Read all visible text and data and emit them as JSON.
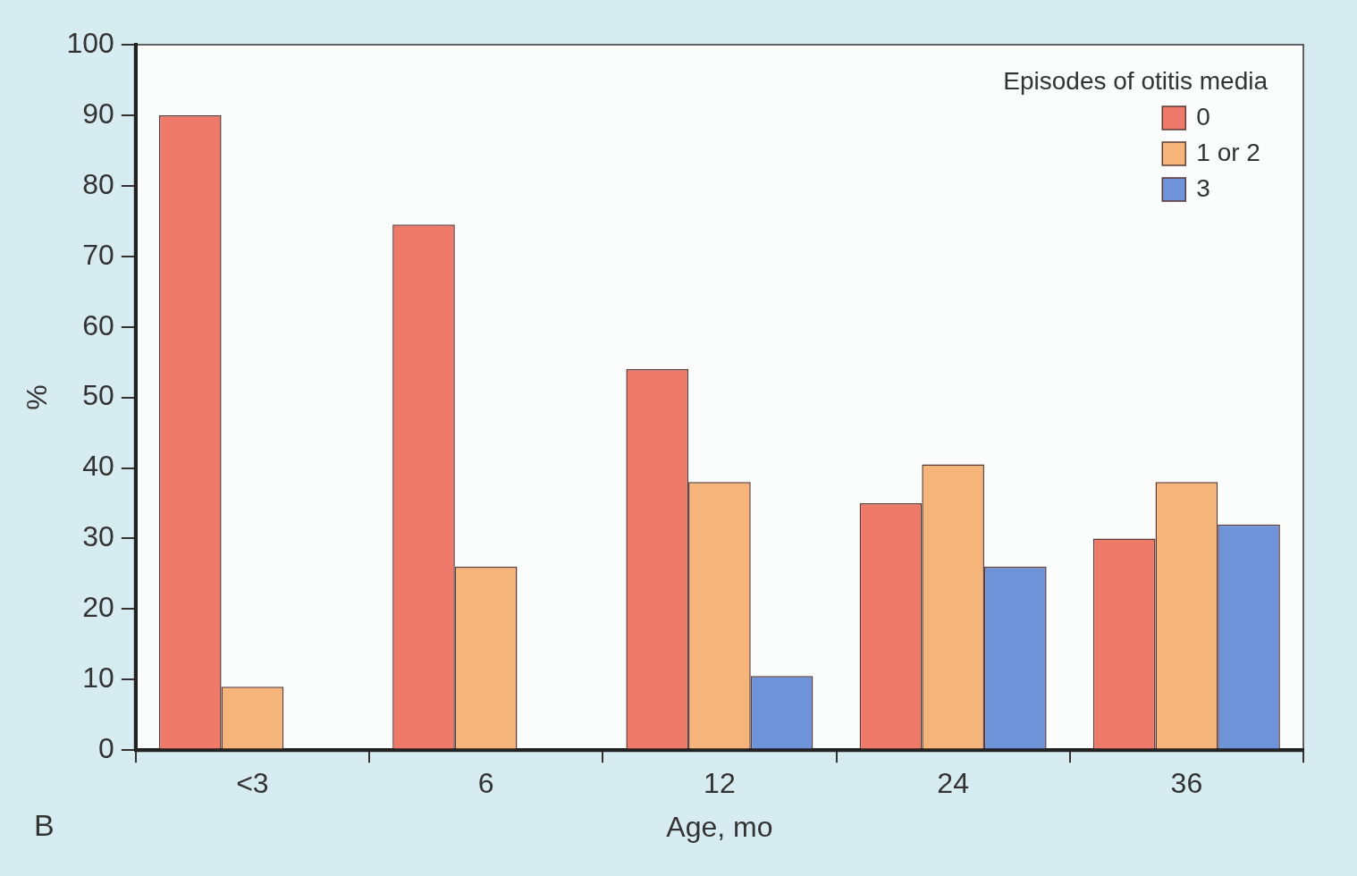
{
  "chart_data": {
    "type": "bar",
    "categories": [
      "<3",
      "6",
      "12",
      "24",
      "36"
    ],
    "series": [
      {
        "name": "0",
        "color": "#f07a6a",
        "values": [
          90,
          74.5,
          54,
          35,
          30
        ]
      },
      {
        "name": "1 or 2",
        "color": "#f5b47a",
        "values": [
          9,
          26,
          38,
          40.5,
          38
        ]
      },
      {
        "name": "3",
        "color": "#6f93d8",
        "values": [
          null,
          null,
          10.5,
          26,
          32
        ]
      }
    ],
    "xlabel": "Age, mo",
    "ylabel": "%",
    "legend_title": "Episodes of otitis media",
    "ylim": [
      0,
      100
    ],
    "yticks": [
      0,
      10,
      20,
      30,
      40,
      50,
      60,
      70,
      80,
      90,
      100
    ],
    "grid": false,
    "legend": "top right",
    "annotations": [
      "B"
    ]
  }
}
